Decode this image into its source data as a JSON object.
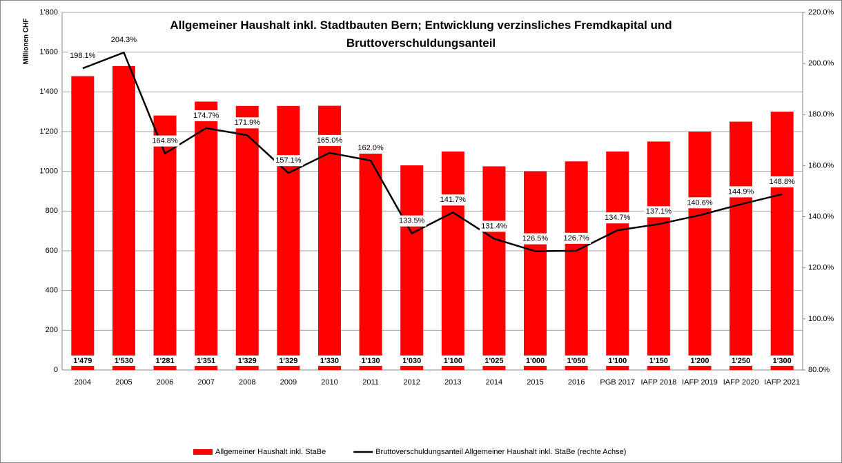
{
  "chart_data": {
    "type": "bar_line",
    "title": "Allgemeiner Haushalt inkl. Stadtbauten Bern; Entwicklung verzinsliches Fremdkapital und Bruttoverschuldungsanteil",
    "ylabel": "Millionen CHF",
    "categories": [
      "2004",
      "2005",
      "2006",
      "2007",
      "2008",
      "2009",
      "2010",
      "2011",
      "2012",
      "2013",
      "2014",
      "2015",
      "2016",
      "PGB 2017",
      "IAFP 2018",
      "IAFP 2019",
      "IAFP 2020",
      "IAFP 2021"
    ],
    "series": [
      {
        "name": "Allgemeiner Haushalt inkl. StaBe",
        "type": "bar",
        "color": "#ff0000",
        "values": [
          1479,
          1530,
          1281,
          1351,
          1329,
          1329,
          1330,
          1130,
          1030,
          1100,
          1025,
          1000,
          1050,
          1100,
          1150,
          1200,
          1250,
          1300
        ],
        "value_labels": [
          "1'479",
          "1'530",
          "1'281",
          "1'351",
          "1'329",
          "1'329",
          "1'330",
          "1'130",
          "1'030",
          "1'100",
          "1'025",
          "1'000",
          "1'050",
          "1'100",
          "1'150",
          "1'200",
          "1'250",
          "1'300"
        ]
      },
      {
        "name": "Bruttoverschuldungsanteil Allgemeiner Haushalt inkl. StaBe (rechte Achse)",
        "type": "line",
        "axis": "y2",
        "color": "#000000",
        "values": [
          198.1,
          204.3,
          164.8,
          174.7,
          171.9,
          157.1,
          165.0,
          162.0,
          133.5,
          141.7,
          131.4,
          126.5,
          126.7,
          134.7,
          137.1,
          140.6,
          144.9,
          148.8
        ],
        "value_labels": [
          "198.1%",
          "204.3%",
          "164.8%",
          "174.7%",
          "171.9%",
          "157.1%",
          "165.0%",
          "162.0%",
          "133.5%",
          "141.7%",
          "131.4%",
          "126.5%",
          "126.7%",
          "134.7%",
          "137.1%",
          "140.6%",
          "144.9%",
          "148.8%"
        ]
      }
    ],
    "ylim": [
      0,
      1800
    ],
    "yticks": [
      0,
      200,
      400,
      600,
      800,
      {
        "value": 1000,
        "label": "1'000"
      },
      {
        "value": 1200,
        "label": "1'200"
      },
      {
        "value": 1400,
        "label": "1'400"
      },
      {
        "value": 1600,
        "label": "1'600"
      },
      {
        "value": 1800,
        "label": "1'800"
      }
    ],
    "y2lim": [
      80,
      220
    ],
    "y2ticks": [
      {
        "value": 80,
        "label": "80.0%"
      },
      {
        "value": 100,
        "label": "100.0%"
      },
      {
        "value": 120,
        "label": "120.0%"
      },
      {
        "value": 140,
        "label": "140.0%"
      },
      {
        "value": 160,
        "label": "160.0%"
      },
      {
        "value": 180,
        "label": "180.0%"
      },
      {
        "value": 200,
        "label": "200.0%"
      },
      {
        "value": 220,
        "label": "220.0%"
      }
    ],
    "grid": true,
    "legend": "bottom"
  }
}
